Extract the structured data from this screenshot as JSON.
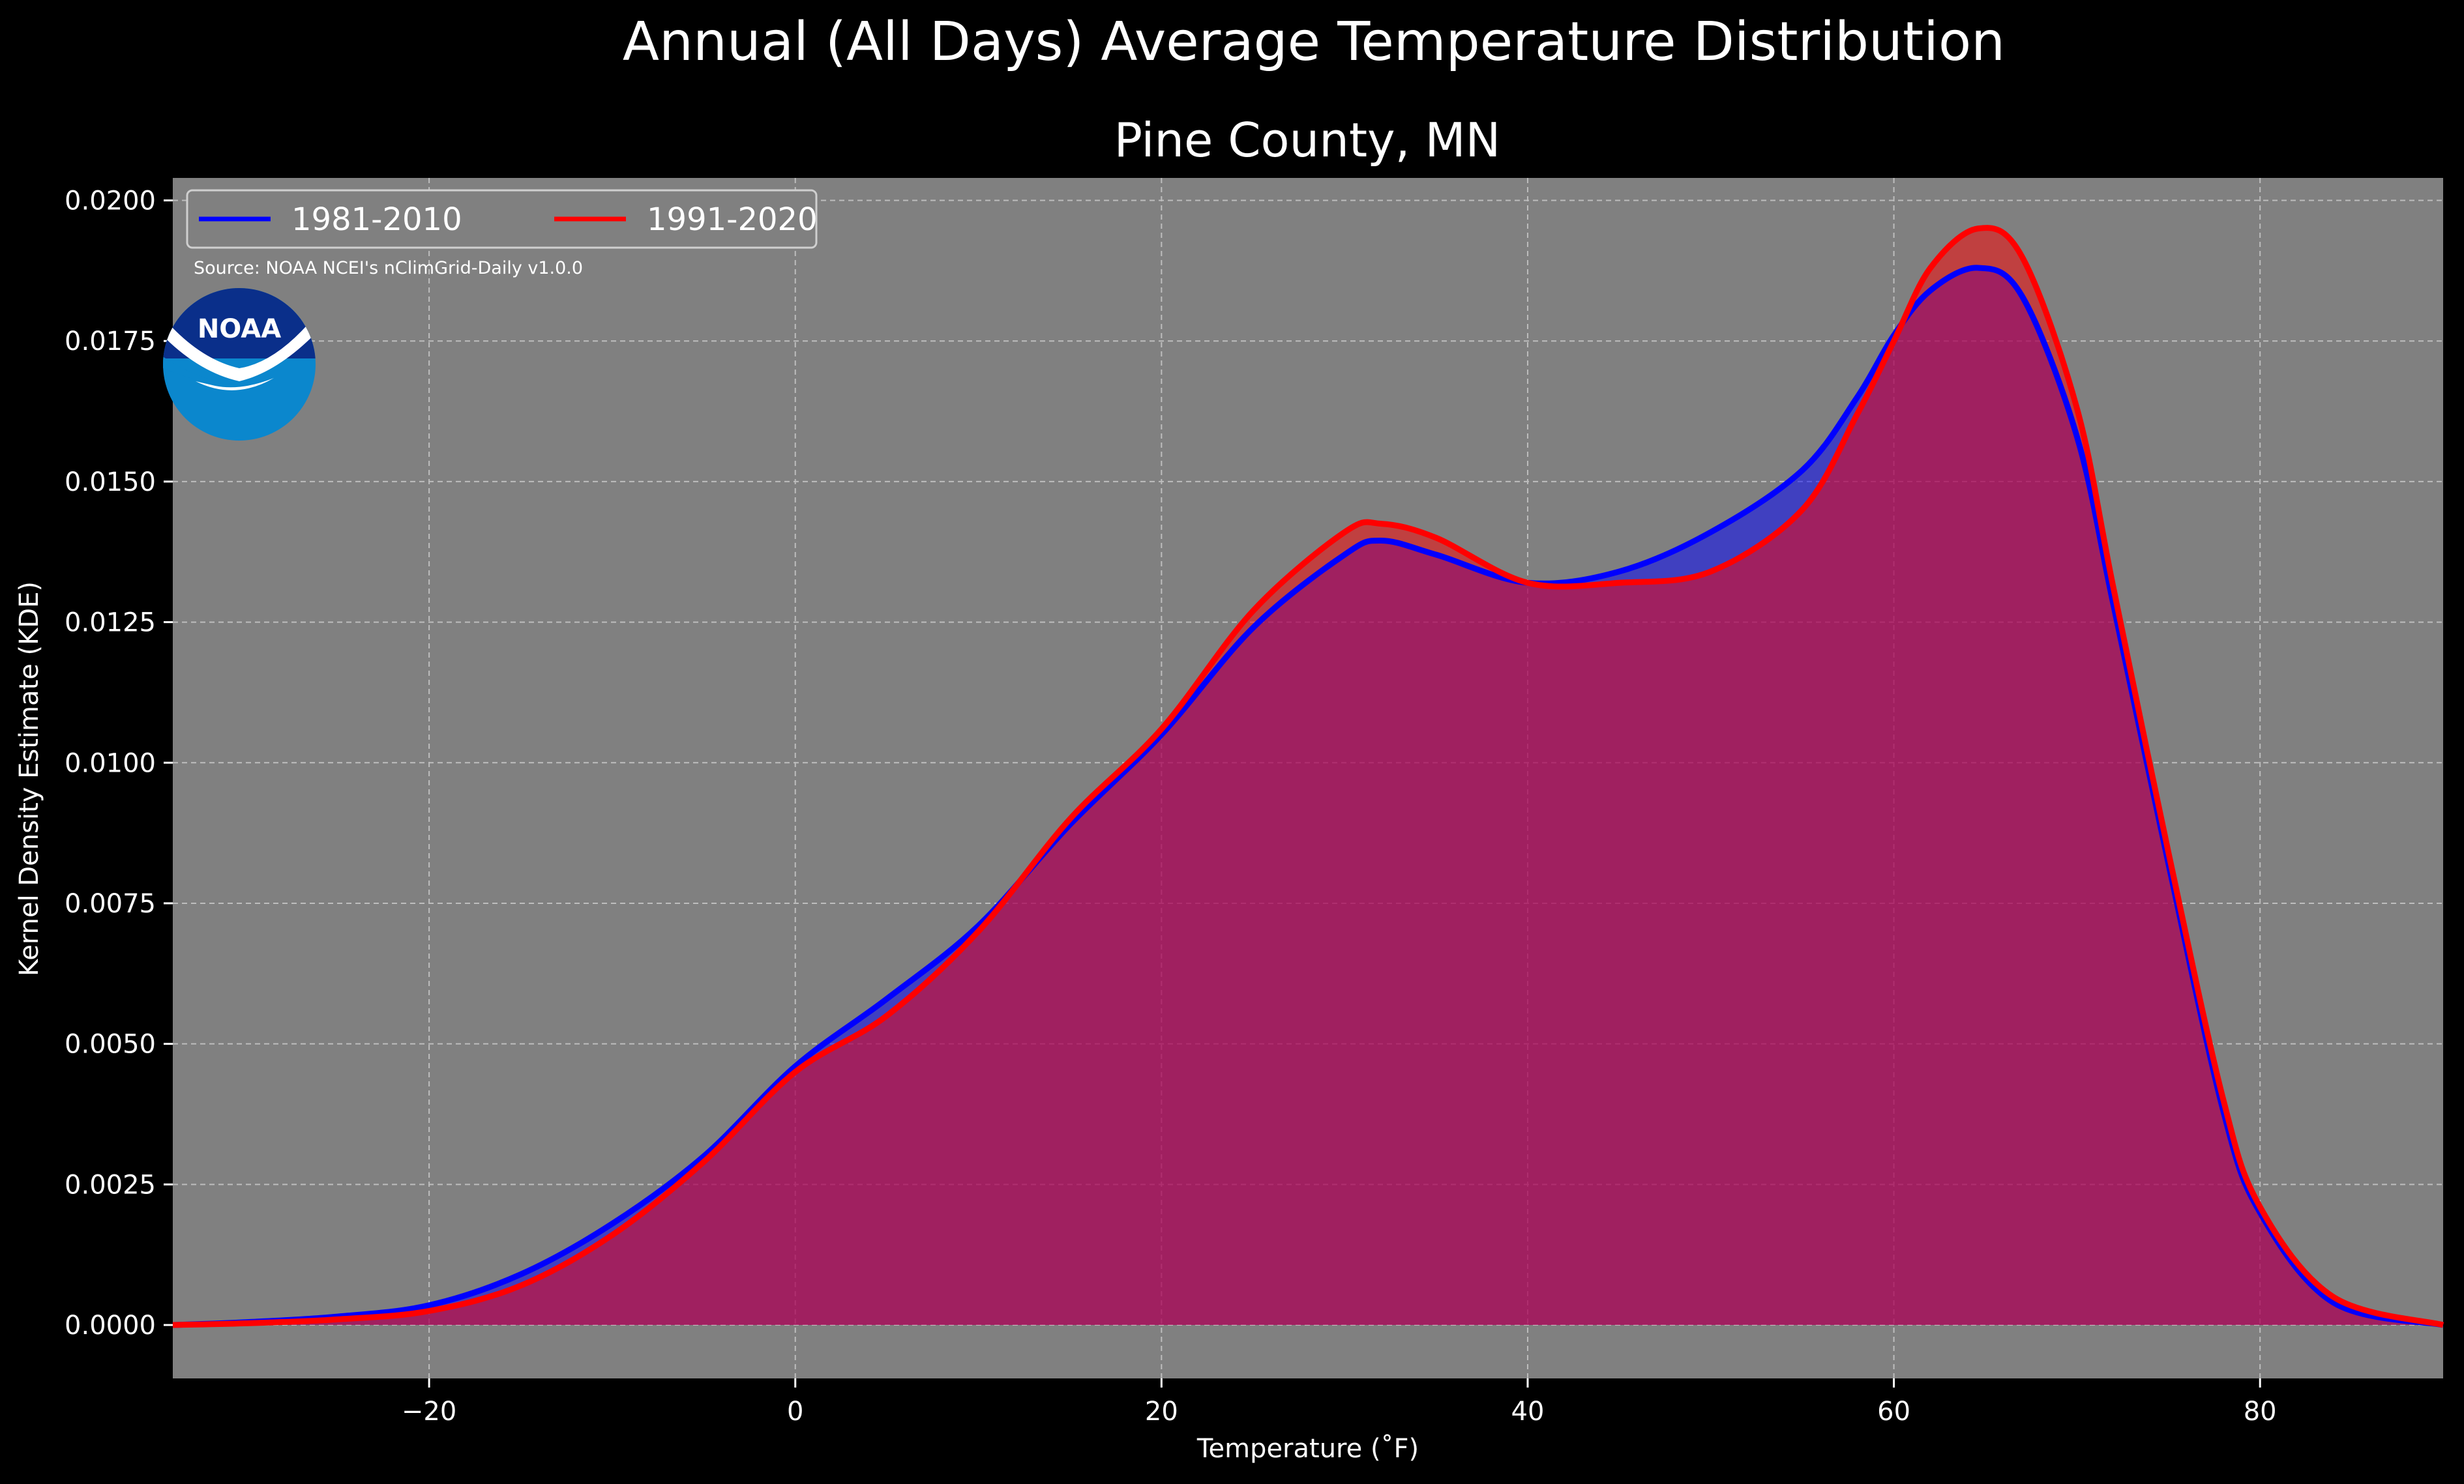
{
  "chart_data": {
    "type": "area",
    "title": "Annual (All Days) Average Temperature Distribution",
    "subtitle": "Pine County, MN",
    "xlabel": "Temperature (˚F)",
    "ylabel": "Kernel Density Estimate (KDE)",
    "xlim": [
      -34,
      90
    ],
    "ylim": [
      -0.00095,
      0.0204
    ],
    "x_ticks": [
      -20,
      0,
      20,
      40,
      60,
      80
    ],
    "x_tick_labels": [
      "−20",
      "0",
      "20",
      "40",
      "60",
      "80"
    ],
    "y_ticks": [
      0,
      0.0025,
      0.005,
      0.0075,
      0.01,
      0.0125,
      0.015,
      0.0175,
      0.02
    ],
    "y_tick_labels": [
      "0.0000",
      "0.0025",
      "0.0050",
      "0.0075",
      "0.0100",
      "0.0125",
      "0.0150",
      "0.0175",
      "0.0200"
    ],
    "grid": true,
    "legend_position": "top-left",
    "source": "Source: NOAA NCEI's nClimGrid-Daily v1.0.0",
    "logo_text": "NOAA",
    "colors": {
      "background": "#000000",
      "plot_bg": "#808080",
      "line_1981": "#0000ff",
      "line_1991": "#ff0000",
      "fill_1981": "#0000ff",
      "fill_1991": "#ff0000",
      "noaa_dark": "#0a2f8a",
      "noaa_light": "#0b87cd"
    },
    "series": [
      {
        "name": "1981-2010",
        "x": [
          -34,
          -30,
          -25,
          -20,
          -15,
          -10,
          -5,
          0,
          5,
          10,
          15,
          20,
          25,
          30,
          32,
          35,
          40,
          45,
          50,
          55,
          58,
          60,
          62,
          64.6,
          67,
          70,
          72,
          75,
          78,
          80,
          84,
          90
        ],
        "y": [
          0.0,
          5e-05,
          0.00015,
          0.00035,
          0.0009,
          0.0018,
          0.003,
          0.0046,
          0.0058,
          0.0071,
          0.0089,
          0.0105,
          0.0124,
          0.0137,
          0.01395,
          0.0137,
          0.0132,
          0.0134,
          0.0141,
          0.0152,
          0.0165,
          0.0176,
          0.0184,
          0.0188,
          0.0183,
          0.0158,
          0.0128,
          0.0082,
          0.0038,
          0.002,
          0.0004,
          0.0
        ]
      },
      {
        "name": "1991-2020",
        "x": [
          -34,
          -30,
          -25,
          -20,
          -15,
          -10,
          -5,
          0,
          5,
          10,
          15,
          20,
          25,
          30,
          32,
          35,
          40,
          45,
          50,
          55,
          58,
          60,
          62,
          64.6,
          67,
          70,
          72,
          75,
          78,
          80,
          84,
          90
        ],
        "y": [
          0.0,
          3e-05,
          0.0001,
          0.00025,
          0.0007,
          0.0016,
          0.0029,
          0.0045,
          0.0055,
          0.007,
          0.009,
          0.0106,
          0.0127,
          0.0141,
          0.01425,
          0.014,
          0.0132,
          0.0132,
          0.0134,
          0.0145,
          0.0162,
          0.0175,
          0.0188,
          0.0195,
          0.019,
          0.0163,
          0.0131,
          0.0084,
          0.004,
          0.0021,
          0.0005,
          0.0
        ]
      }
    ]
  }
}
